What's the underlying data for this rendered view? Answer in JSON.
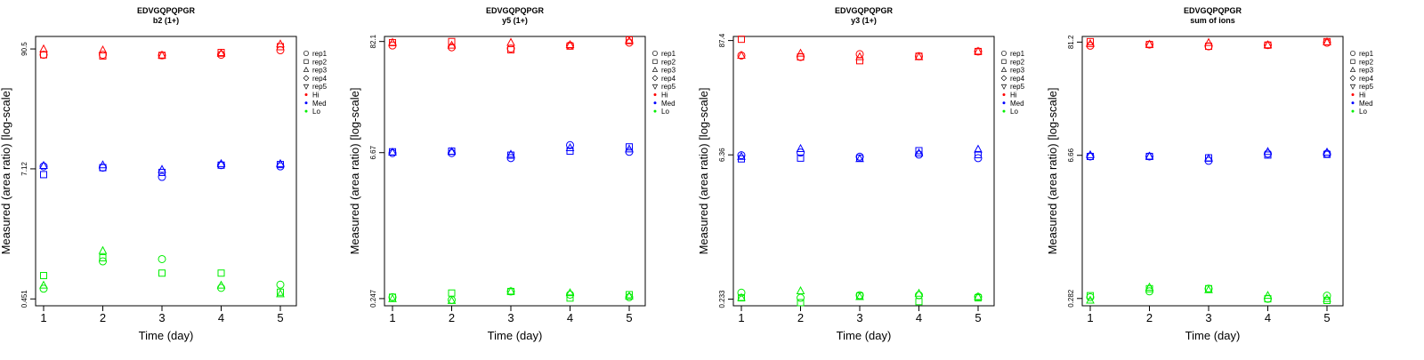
{
  "colors": {
    "Hi": "#ff0000",
    "Med": "#0000ff",
    "Lo": "#00ee00",
    "axis": "#000000"
  },
  "chart_data": [
    {
      "type": "scatter",
      "title": "EDVGQPQPGR",
      "subtitle": "b2 (1+)",
      "xlabel": "Time (day)",
      "ylabel": "Measured (area ratio) [log-scale]",
      "xticks": [
        "1",
        "2",
        "3",
        "4",
        "5"
      ],
      "yticks": [
        {
          "value": 0.451,
          "label": "0.451"
        },
        {
          "value": 7.12,
          "label": "7.12"
        },
        {
          "value": 90.5,
          "label": "90.5"
        }
      ],
      "ylim": [
        0.39,
        118
      ],
      "yscale": "log",
      "legend_position": "right",
      "legend": [
        {
          "label": "rep1",
          "symbol": "circle"
        },
        {
          "label": "rep2",
          "symbol": "square"
        },
        {
          "label": "rep3",
          "symbol": "triangle-up"
        },
        {
          "label": "rep4",
          "symbol": "diamond"
        },
        {
          "label": "rep5",
          "symbol": "triangle-down"
        },
        {
          "label": "Hi",
          "symbol": "dot",
          "color": "#ff0000"
        },
        {
          "label": "Med",
          "symbol": "dot",
          "color": "#0000ff"
        },
        {
          "label": "Lo",
          "symbol": "dot",
          "color": "#00ee00"
        }
      ],
      "series": [
        {
          "name": "Hi",
          "color": "#ff0000",
          "points": [
            {
              "x": 1,
              "values": [
                80,
                80,
                90,
                null,
                null
              ]
            },
            {
              "x": 2,
              "values": [
                80,
                78,
                88,
                null,
                null
              ]
            },
            {
              "x": 3,
              "values": [
                79,
                79,
                79,
                null,
                null
              ]
            },
            {
              "x": 4,
              "values": [
                80,
                84,
                82,
                null,
                null
              ]
            },
            {
              "x": 5,
              "values": [
                88,
                95,
                100,
                null,
                null
              ]
            }
          ]
        },
        {
          "name": "Med",
          "color": "#0000ff",
          "points": [
            {
              "x": 1,
              "values": [
                7.5,
                6.3,
                7.6,
                null,
                null
              ]
            },
            {
              "x": 2,
              "values": [
                7.3,
                7.3,
                7.7,
                null,
                null
              ]
            },
            {
              "x": 3,
              "values": [
                6.0,
                6.6,
                7.0,
                null,
                null
              ]
            },
            {
              "x": 4,
              "values": [
                7.7,
                7.7,
                7.9,
                null,
                null
              ]
            },
            {
              "x": 5,
              "values": [
                7.5,
                7.8,
                7.9,
                null,
                null
              ]
            }
          ]
        },
        {
          "name": "Lo",
          "color": "#00ee00",
          "points": [
            {
              "x": 1,
              "values": [
                0.56,
                0.74,
                0.6,
                null,
                null
              ]
            },
            {
              "x": 2,
              "values": [
                1.0,
                1.08,
                1.25,
                null,
                null
              ]
            },
            {
              "x": 3,
              "values": [
                1.05,
                0.78,
                null,
                null,
                null
              ]
            },
            {
              "x": 4,
              "values": [
                0.57,
                0.78,
                0.6,
                null,
                null
              ]
            },
            {
              "x": 5,
              "values": [
                0.61,
                0.52,
                0.5,
                null,
                null
              ]
            }
          ]
        }
      ]
    },
    {
      "type": "scatter",
      "title": "EDVGQPQPGR",
      "subtitle": "y5 (1+)",
      "xlabel": "Time (day)",
      "ylabel": "Measured (area ratio) [log-scale]",
      "xticks": [
        "1",
        "2",
        "3",
        "4",
        "5"
      ],
      "yticks": [
        {
          "value": 0.247,
          "label": "0.247"
        },
        {
          "value": 6.67,
          "label": "6.67"
        },
        {
          "value": 82.1,
          "label": "82.1"
        }
      ],
      "ylim": [
        0.21,
        92
      ],
      "yscale": "log",
      "legend_position": "right",
      "legend": [
        {
          "label": "rep1",
          "symbol": "circle"
        },
        {
          "label": "rep2",
          "symbol": "square"
        },
        {
          "label": "rep3",
          "symbol": "triangle-up"
        },
        {
          "label": "rep4",
          "symbol": "diamond"
        },
        {
          "label": "rep5",
          "symbol": "triangle-down"
        },
        {
          "label": "Hi",
          "symbol": "dot",
          "color": "#ff0000"
        },
        {
          "label": "Med",
          "symbol": "dot",
          "color": "#0000ff"
        },
        {
          "label": "Lo",
          "symbol": "dot",
          "color": "#00ee00"
        }
      ],
      "series": [
        {
          "name": "Hi",
          "color": "#ff0000",
          "points": [
            {
              "x": 1,
              "values": [
                75,
                80,
                80,
                null,
                null
              ]
            },
            {
              "x": 2,
              "values": [
                72,
                82,
                75,
                null,
                null
              ]
            },
            {
              "x": 3,
              "values": [
                70,
                68,
                80,
                null,
                null
              ]
            },
            {
              "x": 4,
              "values": [
                75,
                74,
                76,
                null,
                null
              ]
            },
            {
              "x": 5,
              "values": [
                80,
                85,
                83,
                null,
                null
              ]
            }
          ]
        },
        {
          "name": "Med",
          "color": "#0000ff",
          "points": [
            {
              "x": 1,
              "values": [
                6.6,
                6.8,
                6.7,
                null,
                null
              ]
            },
            {
              "x": 2,
              "values": [
                6.6,
                6.9,
                6.8,
                null,
                null
              ]
            },
            {
              "x": 3,
              "values": [
                5.9,
                6.3,
                6.4,
                null,
                null
              ]
            },
            {
              "x": 4,
              "values": [
                7.9,
                6.9,
                7.4,
                null,
                null
              ]
            },
            {
              "x": 5,
              "values": [
                6.8,
                7.6,
                7.2,
                null,
                null
              ]
            }
          ]
        },
        {
          "name": "Lo",
          "color": "#00ee00",
          "points": [
            {
              "x": 1,
              "values": [
                0.255,
                0.255,
                0.245,
                null,
                null
              ]
            },
            {
              "x": 2,
              "values": [
                0.24,
                0.28,
                0.235,
                null,
                null
              ]
            },
            {
              "x": 3,
              "values": [
                0.29,
                0.29,
                0.29,
                null,
                null
              ]
            },
            {
              "x": 4,
              "values": [
                0.27,
                0.25,
                0.28,
                null,
                null
              ]
            },
            {
              "x": 5,
              "values": [
                0.255,
                0.27,
                0.26,
                null,
                null
              ]
            }
          ]
        }
      ]
    },
    {
      "type": "scatter",
      "title": "EDVGQPQPGR",
      "subtitle": "y3 (1+)",
      "xlabel": "Time (day)",
      "ylabel": "Measured (area ratio) [log-scale]",
      "xticks": [
        "1",
        "2",
        "3",
        "4",
        "5"
      ],
      "yticks": [
        {
          "value": 0.233,
          "label": "0.233"
        },
        {
          "value": 6.36,
          "label": "6.36"
        },
        {
          "value": 87.4,
          "label": "87.4"
        }
      ],
      "ylim": [
        0.2,
        96
      ],
      "yscale": "log",
      "legend_position": "right",
      "legend": [
        {
          "label": "rep1",
          "symbol": "circle"
        },
        {
          "label": "rep2",
          "symbol": "square"
        },
        {
          "label": "rep3",
          "symbol": "triangle-up"
        },
        {
          "label": "rep4",
          "symbol": "diamond"
        },
        {
          "label": "rep5",
          "symbol": "triangle-down"
        },
        {
          "label": "Hi",
          "symbol": "dot",
          "color": "#ff0000"
        },
        {
          "label": "Med",
          "symbol": "dot",
          "color": "#0000ff"
        },
        {
          "label": "Lo",
          "symbol": "dot",
          "color": "#00ee00"
        }
      ],
      "series": [
        {
          "name": "Hi",
          "color": "#ff0000",
          "points": [
            {
              "x": 1,
              "values": [
                62,
                90,
                62,
                null,
                null
              ]
            },
            {
              "x": 2,
              "values": [
                60,
                60,
                65,
                null,
                null
              ]
            },
            {
              "x": 3,
              "values": [
                64,
                55,
                60,
                null,
                null
              ]
            },
            {
              "x": 4,
              "values": [
                61,
                61,
                60,
                null,
                null
              ]
            },
            {
              "x": 5,
              "values": [
                68,
                68,
                68,
                null,
                null
              ]
            }
          ]
        },
        {
          "name": "Med",
          "color": "#0000ff",
          "points": [
            {
              "x": 1,
              "values": [
                6.3,
                5.8,
                6.1,
                null,
                null
              ]
            },
            {
              "x": 2,
              "values": [
                6.7,
                5.9,
                7.3,
                null,
                null
              ]
            },
            {
              "x": 3,
              "values": [
                6.1,
                5.9,
                5.8,
                null,
                null
              ]
            },
            {
              "x": 4,
              "values": [
                6.4,
                7.0,
                6.6,
                null,
                null
              ]
            },
            {
              "x": 5,
              "values": [
                5.9,
                6.4,
                7.2,
                null,
                null
              ]
            }
          ]
        },
        {
          "name": "Lo",
          "color": "#00ee00",
          "points": [
            {
              "x": 1,
              "values": [
                0.27,
                0.24,
                0.24,
                null,
                null
              ]
            },
            {
              "x": 2,
              "values": [
                0.24,
                0.215,
                0.28,
                null,
                null
              ]
            },
            {
              "x": 3,
              "values": [
                0.255,
                0.25,
                0.245,
                null,
                null
              ]
            },
            {
              "x": 4,
              "values": [
                0.255,
                0.22,
                0.265,
                null,
                null
              ]
            },
            {
              "x": 5,
              "values": [
                0.245,
                0.24,
                0.245,
                null,
                null
              ]
            }
          ]
        }
      ]
    },
    {
      "type": "scatter",
      "title": "EDVGQPQPGR",
      "subtitle": "sum of ions",
      "xlabel": "Time (day)",
      "ylabel": "Measured (area ratio) [log-scale]",
      "xticks": [
        "1",
        "2",
        "3",
        "4",
        "5"
      ],
      "yticks": [
        {
          "value": 0.282,
          "label": "0.282"
        },
        {
          "value": 6.66,
          "label": "6.66"
        },
        {
          "value": 81.2,
          "label": "81.2"
        }
      ],
      "ylim": [
        0.24,
        92
      ],
      "yscale": "log",
      "legend_position": "right",
      "legend": [
        {
          "label": "rep1",
          "symbol": "circle"
        },
        {
          "label": "rep2",
          "symbol": "square"
        },
        {
          "label": "rep3",
          "symbol": "triangle-up"
        },
        {
          "label": "rep4",
          "symbol": "diamond"
        },
        {
          "label": "rep5",
          "symbol": "triangle-down"
        },
        {
          "label": "Hi",
          "symbol": "dot",
          "color": "#ff0000"
        },
        {
          "label": "Med",
          "symbol": "dot",
          "color": "#0000ff"
        },
        {
          "label": "Lo",
          "symbol": "dot",
          "color": "#00ee00"
        }
      ],
      "series": [
        {
          "name": "Hi",
          "color": "#ff0000",
          "points": [
            {
              "x": 1,
              "values": [
                75,
                82,
                78,
                null,
                null
              ]
            },
            {
              "x": 2,
              "values": [
                77,
                77,
                77,
                null,
                null
              ]
            },
            {
              "x": 3,
              "values": [
                74,
                74,
                80,
                null,
                null
              ]
            },
            {
              "x": 4,
              "values": [
                76,
                76,
                76,
                null,
                null
              ]
            },
            {
              "x": 5,
              "values": [
                80,
                82,
                81,
                null,
                null
              ]
            }
          ]
        },
        {
          "name": "Med",
          "color": "#0000ff",
          "points": [
            {
              "x": 1,
              "values": [
                6.5,
                6.5,
                6.7,
                null,
                null
              ]
            },
            {
              "x": 2,
              "values": [
                6.5,
                6.5,
                6.5,
                null,
                null
              ]
            },
            {
              "x": 3,
              "values": [
                5.9,
                6.3,
                6.2,
                null,
                null
              ]
            },
            {
              "x": 4,
              "values": [
                6.9,
                6.7,
                7.2,
                null,
                null
              ]
            },
            {
              "x": 5,
              "values": [
                6.9,
                6.8,
                7.1,
                null,
                null
              ]
            }
          ]
        },
        {
          "name": "Lo",
          "color": "#00ee00",
          "points": [
            {
              "x": 1,
              "values": [
                0.29,
                0.3,
                0.27,
                null,
                null
              ]
            },
            {
              "x": 2,
              "values": [
                0.33,
                0.35,
                0.36,
                null,
                null
              ]
            },
            {
              "x": 3,
              "values": [
                0.35,
                0.35,
                0.34,
                null,
                null
              ]
            },
            {
              "x": 4,
              "values": [
                0.28,
                0.28,
                0.3,
                null,
                null
              ]
            },
            {
              "x": 5,
              "values": [
                0.3,
                0.27,
                0.28,
                null,
                null
              ]
            }
          ]
        }
      ]
    }
  ]
}
